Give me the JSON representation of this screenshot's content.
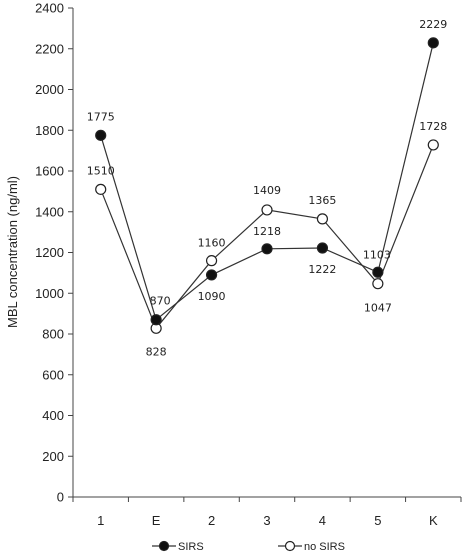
{
  "chart_data": {
    "type": "line",
    "categories": [
      "1",
      "E",
      "2",
      "3",
      "4",
      "5",
      "K"
    ],
    "ylabel": "MBL concentration (ng/ml)",
    "ylim": [
      0,
      2400
    ],
    "yticks": [
      0,
      200,
      400,
      600,
      800,
      1000,
      1200,
      1400,
      1600,
      1800,
      2000,
      2200,
      2400
    ],
    "grid": false,
    "legend_position": "bottom",
    "series": [
      {
        "name": "SIRS",
        "marker": "filled-circle",
        "values": [
          1775,
          870,
          1090,
          1218,
          1222,
          1103,
          2229
        ],
        "labels": [
          "1775",
          "870",
          "1090",
          "1218",
          "1222",
          "1103",
          "2229"
        ]
      },
      {
        "name": "no SIRS",
        "marker": "open-circle",
        "values": [
          1510,
          828,
          1160,
          1409,
          1365,
          1047,
          1728
        ],
        "labels": [
          "1510",
          "828",
          "1160",
          "1409",
          "1365",
          "1047",
          "1728"
        ]
      }
    ]
  }
}
